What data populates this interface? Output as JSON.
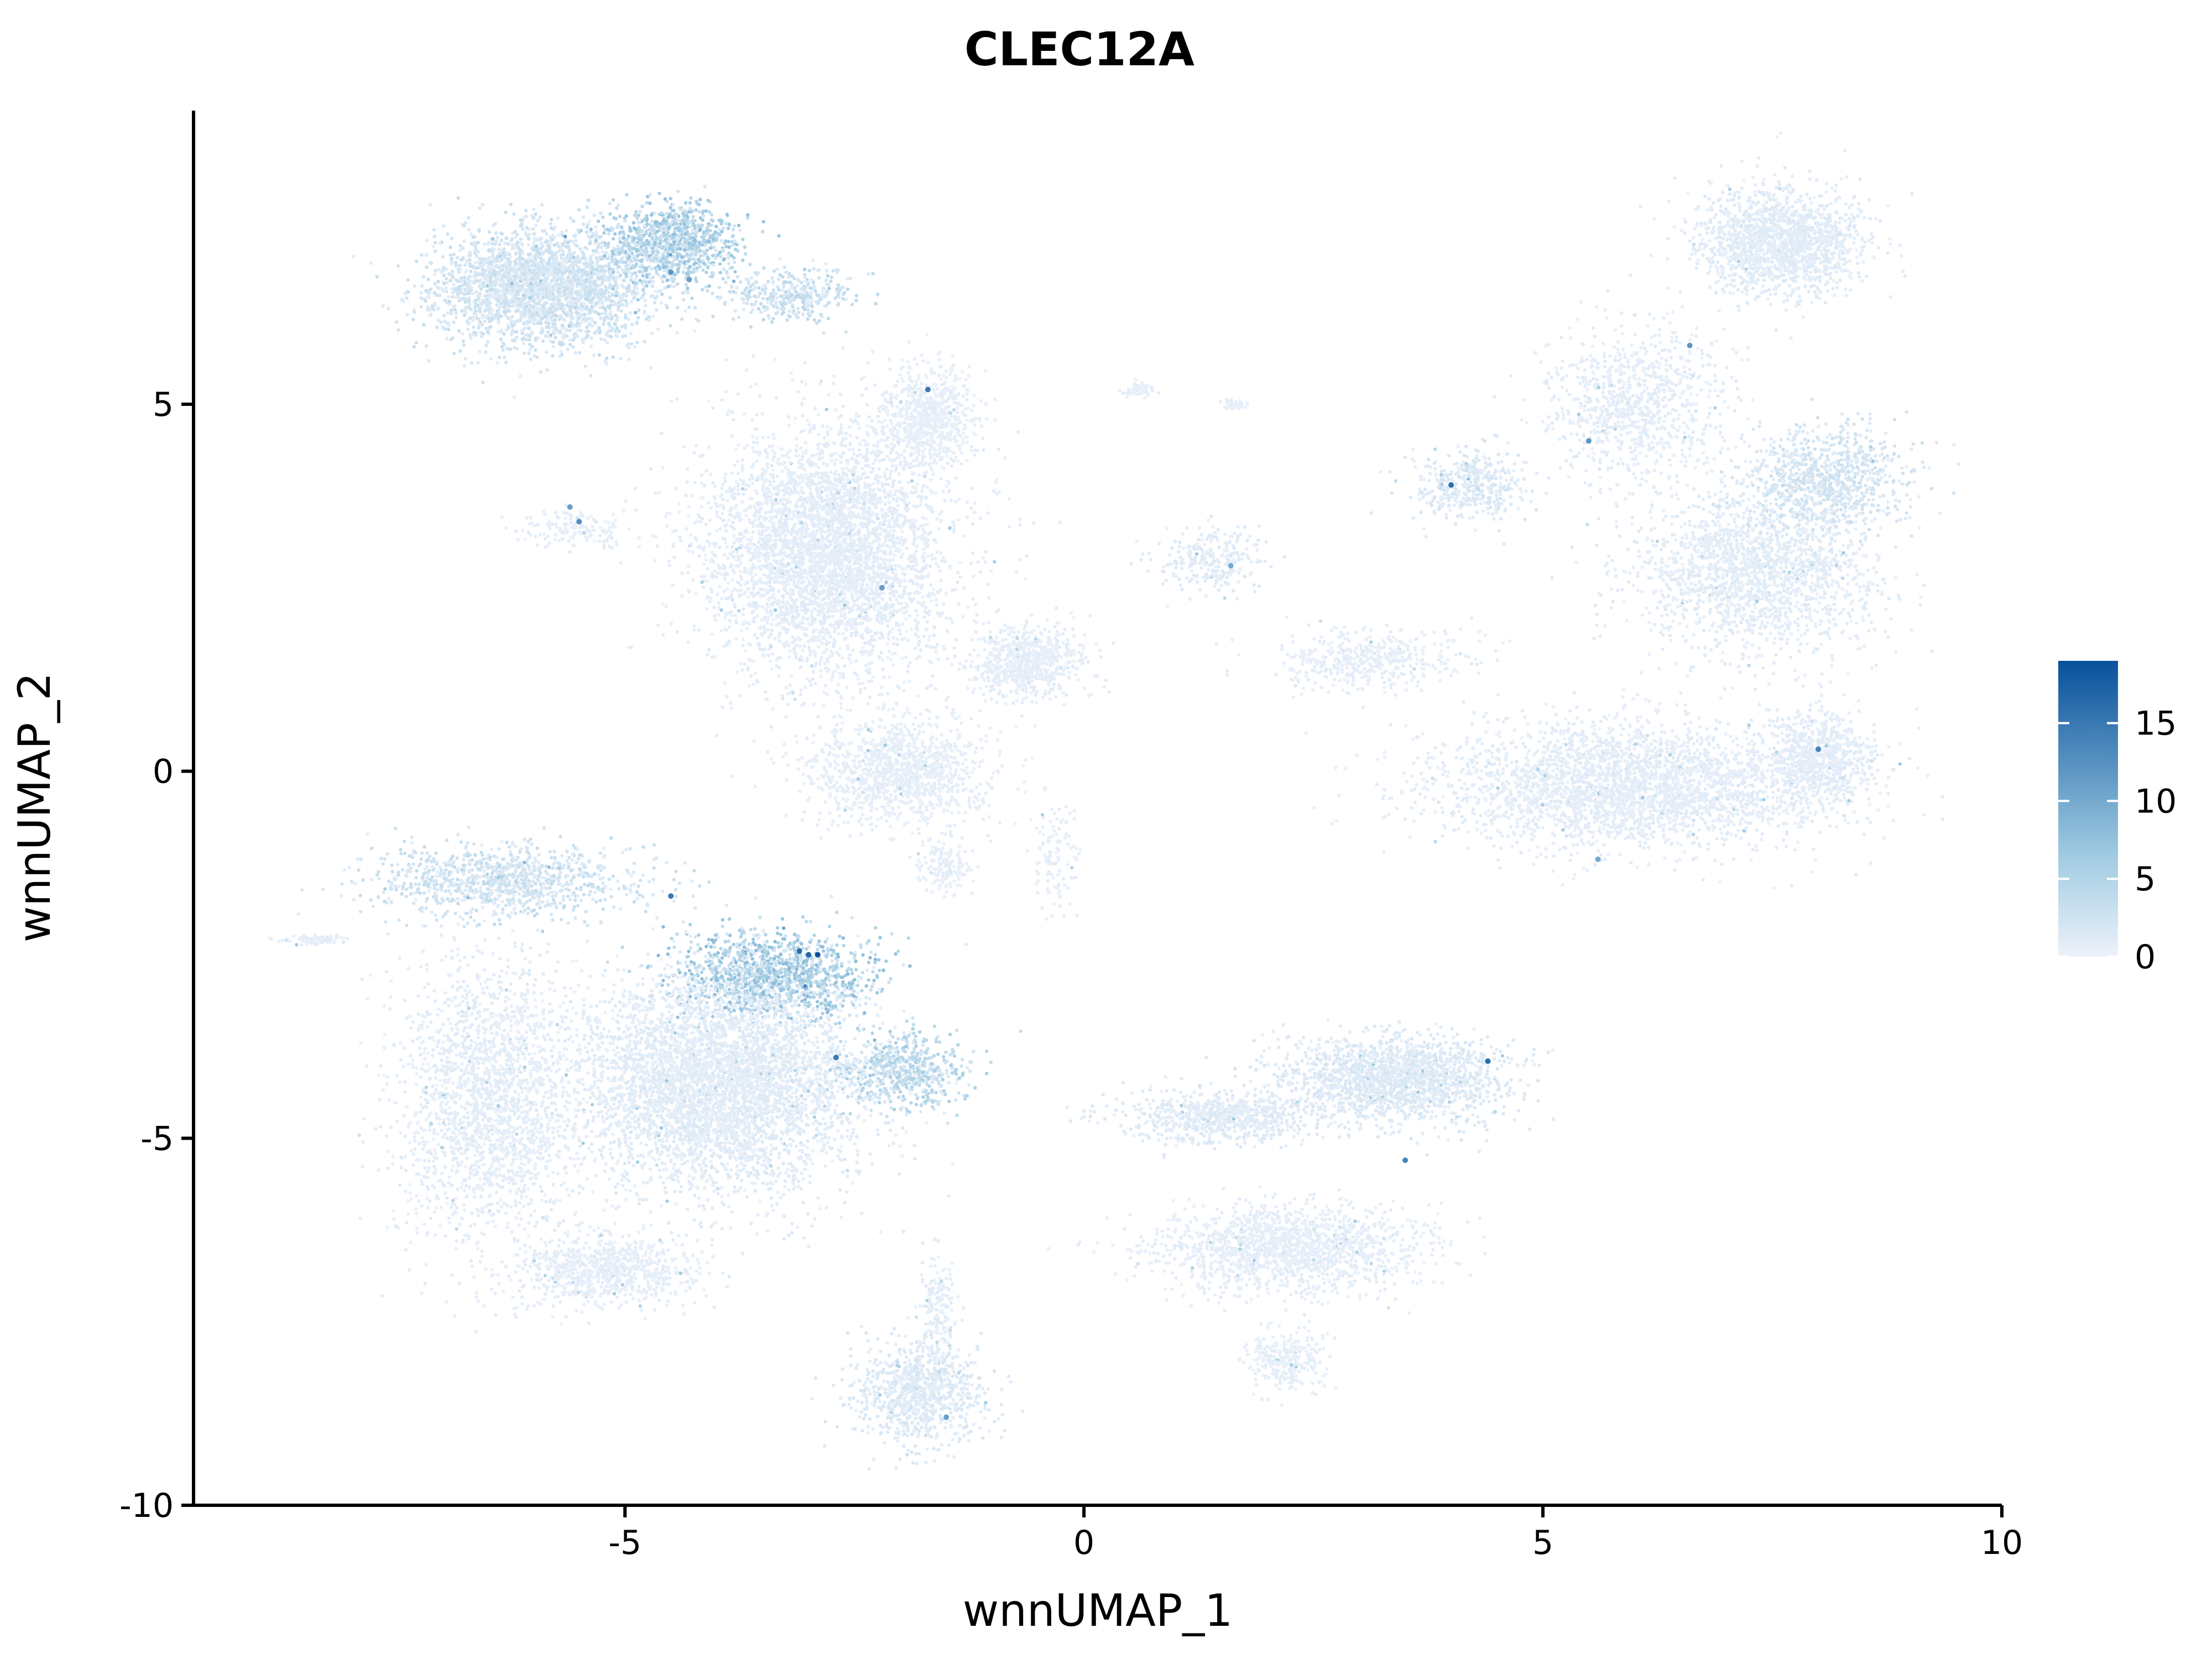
{
  "chart_data": {
    "type": "scatter",
    "title": "CLEC12A",
    "xlabel": "wnnUMAP_1",
    "ylabel": "wnnUMAP_2",
    "xlim": [
      -9.7,
      10.0
    ],
    "ylim": [
      -10.0,
      9.0
    ],
    "x_ticks": [
      -5,
      0,
      5,
      10
    ],
    "x_tick_labels": [
      "-5",
      "0",
      "5",
      "10"
    ],
    "y_ticks": [
      -10,
      -5,
      0,
      5
    ],
    "y_tick_labels": [
      "-10",
      "-5",
      "0",
      "5"
    ],
    "grid": false,
    "colorscale": {
      "low_color": "#edf2fb",
      "mid_color": "#9ecae1",
      "high_color": "#08519c",
      "min": 0,
      "max": 19,
      "ticks": [
        0,
        5,
        10,
        15
      ],
      "tick_labels": [
        "0",
        "5",
        "10",
        "15"
      ],
      "placement": "right"
    },
    "clusters": [
      {
        "cx": -5.9,
        "cy": 6.6,
        "sx": 1.0,
        "sy": 0.65,
        "n": 2600,
        "expr": 2.0
      },
      {
        "cx": -4.5,
        "cy": 7.2,
        "sx": 0.6,
        "sy": 0.45,
        "n": 900,
        "expr": 4.5
      },
      {
        "cx": -3.2,
        "cy": 6.5,
        "sx": 0.6,
        "sy": 0.3,
        "n": 350,
        "expr": 2.5
      },
      {
        "cx": -2.8,
        "cy": 3.0,
        "sx": 1.1,
        "sy": 1.4,
        "n": 4200,
        "expr": 0.7
      },
      {
        "cx": -1.7,
        "cy": 4.8,
        "sx": 0.45,
        "sy": 0.6,
        "n": 700,
        "expr": 0.5
      },
      {
        "cx": -0.6,
        "cy": 1.5,
        "sx": 0.5,
        "sy": 0.4,
        "n": 700,
        "expr": 0.6
      },
      {
        "cx": -2.0,
        "cy": 0.0,
        "sx": 0.8,
        "sy": 0.6,
        "n": 1200,
        "expr": 0.5
      },
      {
        "cx": -1.5,
        "cy": -1.3,
        "sx": 0.25,
        "sy": 0.3,
        "n": 150,
        "expr": 0.5
      },
      {
        "cx": -5.5,
        "cy": 3.3,
        "sx": 0.5,
        "sy": 0.25,
        "n": 150,
        "expr": 0.6
      },
      {
        "cx": 0.6,
        "cy": 5.2,
        "sx": 0.15,
        "sy": 0.08,
        "n": 60,
        "expr": 0.5
      },
      {
        "cx": 1.6,
        "cy": 5.0,
        "sx": 0.15,
        "sy": 0.05,
        "n": 40,
        "expr": 0.5
      },
      {
        "cx": 1.4,
        "cy": 2.9,
        "sx": 0.5,
        "sy": 0.4,
        "n": 250,
        "expr": 1.0
      },
      {
        "cx": 3.1,
        "cy": 1.5,
        "sx": 0.9,
        "sy": 0.35,
        "n": 450,
        "expr": 0.6
      },
      {
        "cx": 6.0,
        "cy": -0.2,
        "sx": 1.8,
        "sy": 0.7,
        "n": 3000,
        "expr": 0.7
      },
      {
        "cx": 8.0,
        "cy": 0.2,
        "sx": 0.45,
        "sy": 0.5,
        "n": 700,
        "expr": 0.8
      },
      {
        "cx": 7.3,
        "cy": 2.7,
        "sx": 1.1,
        "sy": 0.9,
        "n": 1800,
        "expr": 0.8
      },
      {
        "cx": 8.1,
        "cy": 4.0,
        "sx": 0.7,
        "sy": 0.6,
        "n": 900,
        "expr": 1.8
      },
      {
        "cx": 7.6,
        "cy": 7.2,
        "sx": 0.75,
        "sy": 0.6,
        "n": 1600,
        "expr": 0.9
      },
      {
        "cx": 6.0,
        "cy": 5.0,
        "sx": 0.8,
        "sy": 0.9,
        "n": 900,
        "expr": 0.7
      },
      {
        "cx": 4.2,
        "cy": 3.9,
        "sx": 0.5,
        "sy": 0.4,
        "n": 400,
        "expr": 1.3
      },
      {
        "cx": -0.3,
        "cy": -1.2,
        "sx": 0.2,
        "sy": 0.6,
        "n": 120,
        "expr": 0.5
      },
      {
        "cx": -6.3,
        "cy": -1.5,
        "sx": 1.2,
        "sy": 0.4,
        "n": 1000,
        "expr": 2.2
      },
      {
        "cx": -3.4,
        "cy": -2.8,
        "sx": 0.9,
        "sy": 0.5,
        "n": 1200,
        "expr": 5.0
      },
      {
        "cx": -2.0,
        "cy": -4.1,
        "sx": 0.6,
        "sy": 0.4,
        "n": 600,
        "expr": 3.5
      },
      {
        "cx": -4.0,
        "cy": -4.3,
        "sx": 1.3,
        "sy": 1.2,
        "n": 4500,
        "expr": 0.9
      },
      {
        "cx": -6.5,
        "cy": -4.5,
        "sx": 0.8,
        "sy": 1.6,
        "n": 2000,
        "expr": 0.7
      },
      {
        "cx": -5.2,
        "cy": -6.8,
        "sx": 0.8,
        "sy": 0.4,
        "n": 800,
        "expr": 0.6
      },
      {
        "cx": -8.4,
        "cy": -2.3,
        "sx": 0.3,
        "sy": 0.05,
        "n": 80,
        "expr": 0.6
      },
      {
        "cx": -1.8,
        "cy": -8.5,
        "sx": 0.6,
        "sy": 0.6,
        "n": 900,
        "expr": 1.2
      },
      {
        "cx": -1.6,
        "cy": -7.3,
        "sx": 0.15,
        "sy": 0.6,
        "n": 150,
        "expr": 0.8
      },
      {
        "cx": 3.4,
        "cy": -4.2,
        "sx": 1.0,
        "sy": 0.5,
        "n": 1800,
        "expr": 1.2
      },
      {
        "cx": 1.5,
        "cy": -4.7,
        "sx": 0.9,
        "sy": 0.3,
        "n": 700,
        "expr": 1.0
      },
      {
        "cx": 2.2,
        "cy": -6.5,
        "sx": 1.2,
        "sy": 0.5,
        "n": 1500,
        "expr": 0.6
      },
      {
        "cx": 2.2,
        "cy": -8.0,
        "sx": 0.35,
        "sy": 0.35,
        "n": 300,
        "expr": 0.5
      }
    ],
    "highlight_points": [
      {
        "x": -2.9,
        "y": -2.5,
        "v": 19
      },
      {
        "x": -3.0,
        "y": -2.5,
        "v": 17
      },
      {
        "x": -3.1,
        "y": -2.45,
        "v": 16
      },
      {
        "x": -2.7,
        "y": -3.9,
        "v": 15
      },
      {
        "x": -4.5,
        "y": -1.7,
        "v": 15
      },
      {
        "x": 4.4,
        "y": -3.95,
        "v": 16
      },
      {
        "x": 3.5,
        "y": -5.3,
        "v": 14
      },
      {
        "x": -1.7,
        "y": 5.2,
        "v": 15
      },
      {
        "x": 4.0,
        "y": 3.9,
        "v": 16
      },
      {
        "x": -5.5,
        "y": 3.4,
        "v": 13
      },
      {
        "x": -5.6,
        "y": 3.6,
        "v": 11
      },
      {
        "x": 6.6,
        "y": 5.8,
        "v": 12
      },
      {
        "x": 8.0,
        "y": 0.3,
        "v": 14
      },
      {
        "x": 5.5,
        "y": 4.5,
        "v": 12
      },
      {
        "x": -2.2,
        "y": 2.5,
        "v": 11
      },
      {
        "x": 5.6,
        "y": -1.2,
        "v": 10
      },
      {
        "x": -4.5,
        "y": 6.8,
        "v": 12
      },
      {
        "x": -4.3,
        "y": 6.7,
        "v": 11
      },
      {
        "x": -1.5,
        "y": -8.8,
        "v": 11
      },
      {
        "x": 1.6,
        "y": 2.8,
        "v": 10
      }
    ]
  }
}
